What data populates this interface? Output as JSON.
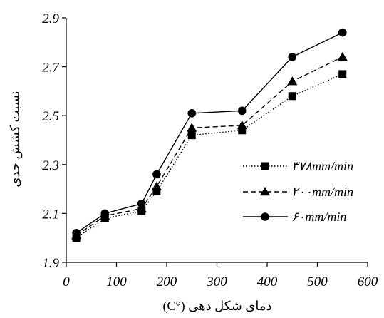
{
  "chart_data": {
    "type": "line",
    "xlabel": "دمای شکل دهی (°C)",
    "ylabel": "نسبت کشش حدی",
    "xlim": [
      0,
      600
    ],
    "ylim": [
      1.9,
      2.9
    ],
    "xticks": [
      "0",
      "100",
      "200",
      "300",
      "400",
      "500",
      "600"
    ],
    "yticks": [
      "1.9",
      "2.1",
      "2.3",
      "2.5",
      "2.7",
      "2.9"
    ],
    "grid": false,
    "legend_position": "lower-right",
    "series": [
      {
        "name": "۳۷۸mm/min",
        "marker": "square",
        "line_style": "dotted",
        "x": [
          20,
          77,
          150,
          180,
          250,
          350,
          450,
          550
        ],
        "y": [
          2.0,
          2.08,
          2.11,
          2.19,
          2.42,
          2.44,
          2.58,
          2.67
        ]
      },
      {
        "name": "۲۰۰mm/min",
        "marker": "triangle",
        "line_style": "dashed",
        "x": [
          20,
          77,
          150,
          180,
          250,
          350,
          450,
          550
        ],
        "y": [
          2.01,
          2.09,
          2.12,
          2.21,
          2.45,
          2.46,
          2.64,
          2.74
        ]
      },
      {
        "name": "۶۰mm/min",
        "marker": "circle",
        "line_style": "solid",
        "x": [
          20,
          77,
          150,
          180,
          250,
          350,
          450,
          550
        ],
        "y": [
          2.02,
          2.1,
          2.14,
          2.26,
          2.51,
          2.52,
          2.74,
          2.84
        ]
      }
    ]
  }
}
